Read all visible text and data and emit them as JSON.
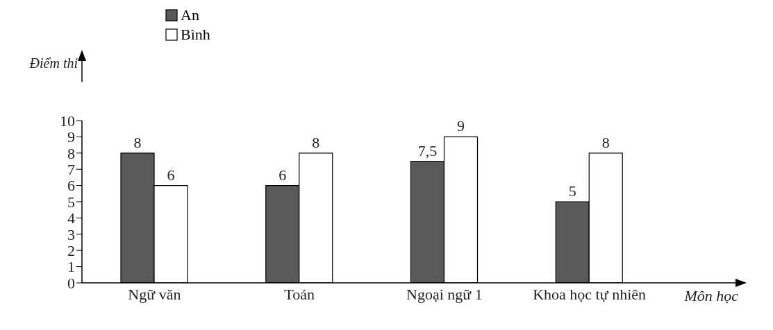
{
  "chart_data": {
    "type": "bar",
    "xlabel": "Môn học",
    "ylabel": "Điểm thi",
    "categories": [
      "Ngữ văn",
      "Toán",
      "Ngoại ngữ 1",
      "Khoa học tự nhiên"
    ],
    "series": [
      {
        "name": "An",
        "color": "#595959",
        "values": [
          8,
          6,
          7.5,
          5
        ],
        "value_labels": [
          "8",
          "6",
          "7,5",
          "5"
        ]
      },
      {
        "name": "Bình",
        "color": "#ffffff",
        "values": [
          6,
          8,
          9,
          8
        ],
        "value_labels": [
          "6",
          "8",
          "9",
          "8"
        ]
      }
    ],
    "ylim": [
      0,
      10
    ],
    "yticks": [
      0,
      1,
      2,
      3,
      4,
      5,
      6,
      7,
      8,
      9,
      10
    ],
    "grid": false,
    "legend": "top"
  }
}
